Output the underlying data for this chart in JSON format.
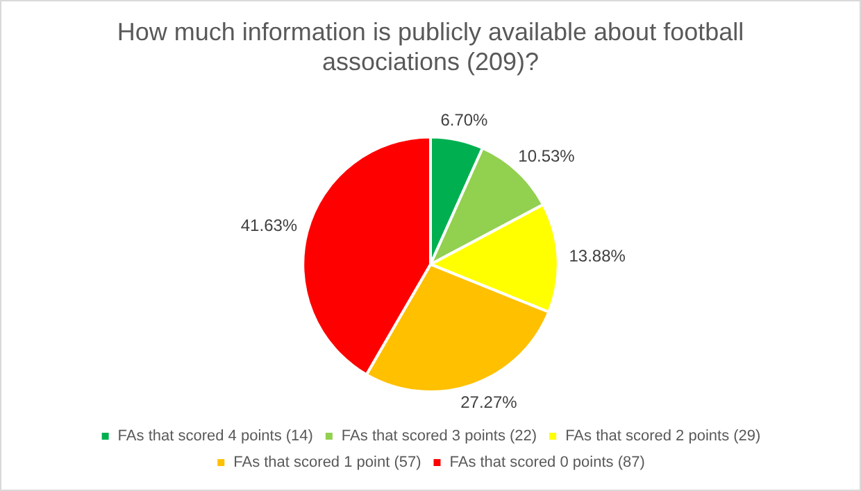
{
  "chart_data": {
    "type": "pie",
    "title": "How much information is publicly available about football associations (209)?",
    "categories": [
      "FAs that scored 4 points (14)",
      "FAs that scored 3 points (22)",
      "FAs that scored 2 points (29)",
      "FAs that scored 1 point (57)",
      "FAs that scored 0 points (87)"
    ],
    "values": [
      6.7,
      10.53,
      13.88,
      27.27,
      41.63
    ],
    "value_labels": [
      "6.70%",
      "10.53%",
      "13.88%",
      "27.27%",
      "41.63%"
    ],
    "colors": [
      "#00b050",
      "#92d050",
      "#ffff00",
      "#ffc000",
      "#ff0000"
    ],
    "legend": "bottom"
  }
}
